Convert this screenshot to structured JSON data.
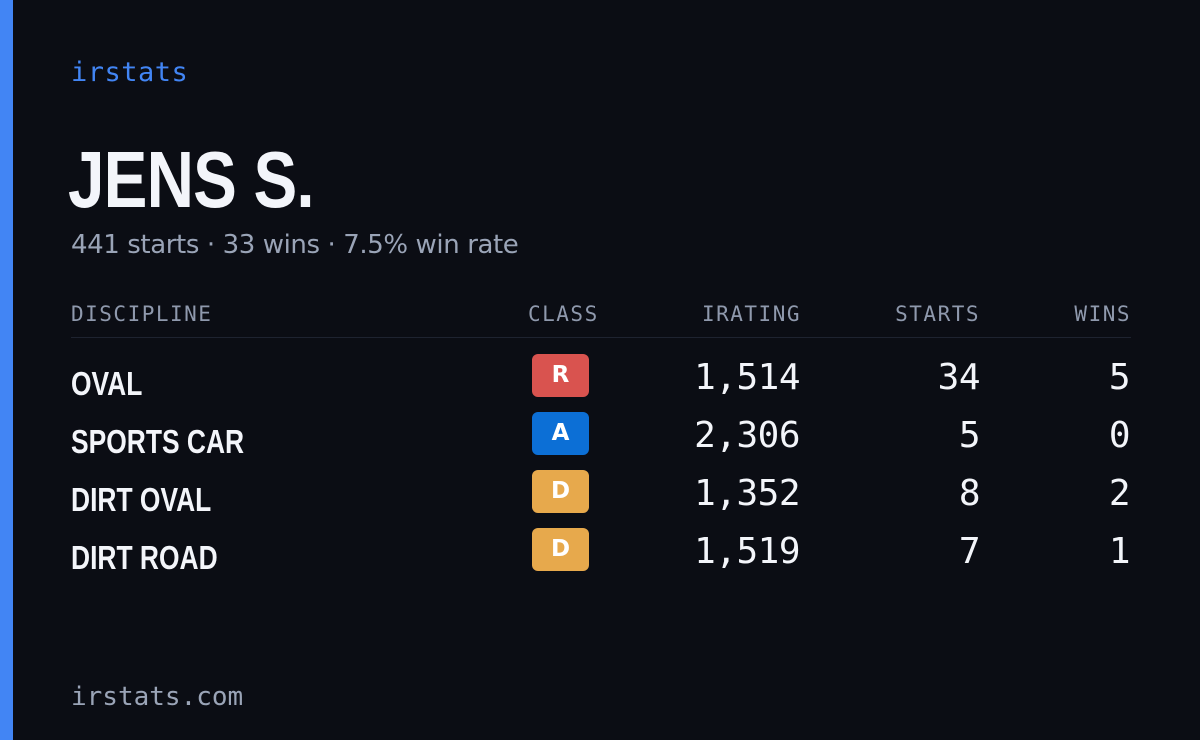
{
  "colors": {
    "background": "#0b0d14",
    "accent": "#4285f4",
    "class_R": "#d9534f",
    "class_A": "#0c6fd6",
    "class_D": "#e7a94c"
  },
  "brand": "irstats",
  "driver": {
    "name": "JENS S.",
    "summary": "441 starts · 33 wins · 7.5% win rate"
  },
  "table": {
    "headers": {
      "discipline": "DISCIPLINE",
      "class": "CLASS",
      "irating": "IRATING",
      "starts": "STARTS",
      "wins": "WINS"
    },
    "rows": [
      {
        "discipline": "OVAL",
        "class": "R",
        "irating": "1,514",
        "starts": "34",
        "wins": "5"
      },
      {
        "discipline": "SPORTS CAR",
        "class": "A",
        "irating": "2,306",
        "starts": "5",
        "wins": "0"
      },
      {
        "discipline": "DIRT OVAL",
        "class": "D",
        "irating": "1,352",
        "starts": "8",
        "wins": "2"
      },
      {
        "discipline": "DIRT ROAD",
        "class": "D",
        "irating": "1,519",
        "starts": "7",
        "wins": "1"
      }
    ]
  },
  "footer": "irstats.com"
}
